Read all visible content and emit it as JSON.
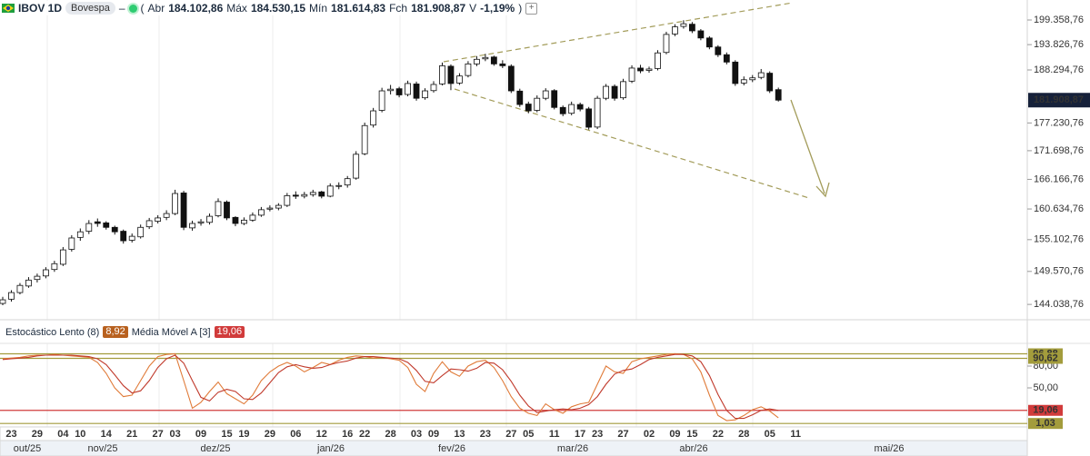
{
  "header": {
    "symbol": "IBOV 1D",
    "exchange": "Bovespa",
    "quote": [
      {
        "label": "Abr",
        "value": "184.102,86"
      },
      {
        "label": "Máx",
        "value": "184.530,15"
      },
      {
        "label": "Mín",
        "value": "181.614,83"
      },
      {
        "label": "Fch",
        "value": "181.908,87"
      },
      {
        "label": "V",
        "value": "-1,19%"
      }
    ]
  },
  "chart_data": [
    {
      "type": "candlestick",
      "log_scale": true,
      "ylim": [
        141830,
        203966
      ],
      "yticks": [
        {
          "value": 144038.76,
          "label": "144.038,76"
        },
        {
          "value": 149570.76,
          "label": "149.570,76"
        },
        {
          "value": 155102.76,
          "label": "155.102,76"
        },
        {
          "value": 160634.76,
          "label": "160.634,76"
        },
        {
          "value": 166166.76,
          "label": "166.166,76"
        },
        {
          "value": 171698.76,
          "label": "171.698,76"
        },
        {
          "value": 177230.76,
          "label": "177.230,76"
        },
        {
          "value": 188294.76,
          "label": "188.294,76"
        },
        {
          "value": 193826.76,
          "label": "193.826,76"
        },
        {
          "value": 199358.76,
          "label": "199.358,76"
        }
      ],
      "last_value_label": "181.908,87",
      "months": [
        "out/25",
        "nov/25",
        "dez/25",
        "jan/26",
        "fev/26",
        "mar/26",
        "abr/26",
        "mai/26"
      ],
      "categories": [
        null,
        "23",
        null,
        null,
        "29",
        null,
        null,
        "04",
        null,
        "10",
        null,
        null,
        "14",
        null,
        null,
        "21",
        null,
        null,
        "27",
        null,
        "03",
        null,
        null,
        "09",
        null,
        null,
        "15",
        null,
        "19",
        null,
        null,
        "29",
        null,
        null,
        "06",
        null,
        null,
        "12",
        null,
        null,
        "16",
        null,
        "22",
        null,
        null,
        "28",
        null,
        null,
        "03",
        null,
        "09",
        null,
        null,
        "13",
        null,
        null,
        "23",
        null,
        null,
        "27",
        null,
        "05",
        null,
        null,
        "11",
        null,
        null,
        "17",
        null,
        "23",
        null,
        null,
        "27",
        null,
        null,
        "02",
        null,
        null,
        "09",
        null,
        "15",
        null,
        null,
        "22",
        null,
        null,
        "28",
        null,
        null,
        "05",
        null,
        null,
        "11",
        null,
        null,
        null,
        null,
        null,
        null,
        null,
        null,
        null,
        null,
        null,
        null,
        null,
        null,
        null,
        null,
        null,
        null,
        null,
        null,
        null,
        null,
        null,
        null,
        null,
        null
      ],
      "candles": [
        [
          144200,
          145300,
          143900,
          144800
        ],
        [
          144900,
          146400,
          144500,
          146000
        ],
        [
          146000,
          147600,
          145700,
          147200
        ],
        [
          147100,
          148600,
          146800,
          148100
        ],
        [
          148200,
          149200,
          147700,
          148750
        ],
        [
          148800,
          150300,
          148400,
          149850
        ],
        [
          149900,
          151400,
          149500,
          150900
        ],
        [
          150800,
          153800,
          150500,
          153300
        ],
        [
          153400,
          155900,
          153000,
          155400
        ],
        [
          155500,
          157100,
          154900,
          156500
        ],
        [
          156600,
          158600,
          156100,
          157990
        ],
        [
          158300,
          158900,
          157400,
          158000
        ],
        [
          158100,
          158400,
          156900,
          157300
        ],
        [
          157300,
          157600,
          156000,
          156500
        ],
        [
          156600,
          156900,
          154400,
          154900
        ],
        [
          155000,
          156200,
          154600,
          155700
        ],
        [
          155600,
          157800,
          155300,
          157300
        ],
        [
          157400,
          159000,
          157000,
          158500
        ],
        [
          158400,
          159500,
          158000,
          159000
        ],
        [
          159100,
          160400,
          158600,
          159800
        ],
        [
          159800,
          164200,
          159500,
          163500
        ],
        [
          163600,
          164000,
          156800,
          157300
        ],
        [
          157200,
          158500,
          156700,
          158000
        ],
        [
          158100,
          158800,
          157600,
          158300
        ],
        [
          158200,
          159800,
          157800,
          159300
        ],
        [
          159400,
          162600,
          159100,
          162000
        ],
        [
          161900,
          162200,
          158600,
          159000
        ],
        [
          159100,
          159300,
          157500,
          158000
        ],
        [
          158000,
          159100,
          157700,
          158600
        ],
        [
          158600,
          160000,
          158300,
          159500
        ],
        [
          159500,
          161000,
          159200,
          160500
        ],
        [
          160600,
          161300,
          160200,
          160800
        ],
        [
          160800,
          161700,
          160400,
          161300
        ],
        [
          161300,
          163600,
          161000,
          163100
        ],
        [
          163200,
          163900,
          162500,
          163000
        ],
        [
          163000,
          163800,
          162600,
          163300
        ],
        [
          163300,
          164200,
          162900,
          163700
        ],
        [
          163800,
          164000,
          162600,
          163000
        ],
        [
          163000,
          165400,
          162800,
          164900
        ],
        [
          164900,
          165600,
          164300,
          165000
        ],
        [
          165100,
          166800,
          164600,
          166300
        ],
        [
          166400,
          171600,
          166100,
          171000
        ],
        [
          171100,
          177300,
          170800,
          176700
        ],
        [
          176800,
          180300,
          176300,
          179700
        ],
        [
          179800,
          184500,
          179400,
          183850
        ],
        [
          183900,
          185100,
          183100,
          184200
        ],
        [
          184300,
          184700,
          182500,
          183000
        ],
        [
          183100,
          186000,
          182700,
          185400
        ],
        [
          185300,
          185800,
          181800,
          182300
        ],
        [
          182400,
          184400,
          182000,
          183850
        ],
        [
          183900,
          185900,
          183500,
          185200
        ],
        [
          185300,
          189900,
          185000,
          189200
        ],
        [
          189100,
          189500,
          184000,
          185400
        ],
        [
          185500,
          187600,
          185100,
          187000
        ],
        [
          187100,
          190200,
          186700,
          189600
        ],
        [
          189600,
          191300,
          189100,
          190600
        ],
        [
          190700,
          191800,
          190200,
          191000
        ],
        [
          191100,
          191400,
          189200,
          189600
        ],
        [
          189600,
          190400,
          188700,
          189200
        ],
        [
          189100,
          189500,
          183400,
          183850
        ],
        [
          183800,
          184300,
          180500,
          181000
        ],
        [
          181100,
          181600,
          179200,
          179700
        ],
        [
          179800,
          182900,
          179400,
          182300
        ],
        [
          182300,
          184400,
          181900,
          183850
        ],
        [
          183900,
          184200,
          180000,
          180400
        ],
        [
          180400,
          180800,
          178600,
          179100
        ],
        [
          179200,
          181600,
          178800,
          181000
        ],
        [
          181000,
          181400,
          179600,
          180060
        ],
        [
          180100,
          180500,
          175900,
          176370
        ],
        [
          176400,
          182800,
          176000,
          182300
        ],
        [
          182300,
          185300,
          181900,
          184800
        ],
        [
          184800,
          185200,
          181800,
          182300
        ],
        [
          182400,
          186400,
          182000,
          185800
        ],
        [
          185900,
          189300,
          185500,
          188700
        ],
        [
          188700,
          189400,
          187600,
          188100
        ],
        [
          188200,
          189000,
          187700,
          188500
        ],
        [
          188600,
          192600,
          188200,
          192000
        ],
        [
          192100,
          196700,
          191700,
          196100
        ],
        [
          196200,
          198400,
          195700,
          197800
        ],
        [
          197900,
          199300,
          197400,
          198500
        ],
        [
          198400,
          198900,
          196400,
          196900
        ],
        [
          196900,
          197300,
          194800,
          195300
        ],
        [
          195300,
          195700,
          192800,
          193300
        ],
        [
          193300,
          193700,
          191100,
          191600
        ],
        [
          191600,
          192100,
          189500,
          190000
        ],
        [
          190000,
          190400,
          184900,
          185400
        ],
        [
          185500,
          186900,
          185000,
          186200
        ],
        [
          186200,
          187200,
          185700,
          186600
        ],
        [
          186700,
          188500,
          186300,
          187700
        ],
        [
          187600,
          188000,
          183400,
          183850
        ],
        [
          184102.86,
          184530.15,
          181614.83,
          181908.87
        ],
        null,
        null,
        null,
        null,
        null,
        null,
        null,
        null,
        null,
        null,
        null,
        null,
        null,
        null,
        null,
        null,
        null,
        null,
        null,
        null,
        null,
        null,
        null,
        null,
        null,
        null,
        null,
        null
      ]
    },
    {
      "type": "line",
      "ylim": [
        -3.75,
        105
      ],
      "yticks": [
        {
          "value": 50,
          "label": "50,00"
        },
        {
          "value": 80,
          "label": "80,00"
        }
      ],
      "markers": [
        {
          "value": 96.88,
          "label": "96,88",
          "color": "#a39c3c"
        },
        {
          "value": 90.62,
          "label": "90,62",
          "color": "#a39c3c"
        },
        {
          "value": 19.06,
          "label": "19,06",
          "color": "#d13b3b"
        },
        {
          "value": 1.03,
          "label": "1,03",
          "color": "#a39c3c"
        }
      ],
      "series": [
        {
          "name": "Estocástico Lento (8)",
          "color": "#e07b39",
          "badge_color": "#b8611f",
          "last_label": "8,92",
          "values": [
            90,
            91,
            92,
            94,
            95,
            95,
            96,
            95,
            94,
            93,
            92,
            85,
            70,
            50,
            38,
            40,
            60,
            80,
            93,
            96,
            97,
            60,
            22,
            30,
            45,
            58,
            42,
            35,
            28,
            40,
            60,
            72,
            80,
            85,
            80,
            72,
            78,
            85,
            82,
            88,
            92,
            94,
            93,
            91,
            92,
            90,
            88,
            78,
            55,
            45,
            70,
            86,
            72,
            66,
            80,
            86,
            88,
            78,
            60,
            38,
            22,
            15,
            12,
            28,
            20,
            15,
            24,
            28,
            30,
            55,
            80,
            72,
            70,
            86,
            90,
            92,
            94,
            96,
            97,
            96,
            90,
            72,
            40,
            12,
            5,
            6,
            12,
            20,
            24,
            18,
            8.92,
            null,
            null,
            null,
            null,
            null,
            null,
            null,
            null,
            null,
            null,
            null,
            null,
            null,
            null,
            null,
            null,
            null,
            null,
            null,
            null,
            null,
            null,
            null,
            null,
            null,
            null,
            null,
            null
          ]
        },
        {
          "name": "Média Móvel A [3]",
          "color": "#c0392b",
          "badge_color": "#d13b3b",
          "last_label": "19,06",
          "values": [
            89,
            90,
            91,
            92,
            94,
            95,
            95,
            95,
            95,
            94,
            93,
            90,
            82,
            68,
            53,
            43,
            46,
            60,
            78,
            90,
            95,
            84,
            60,
            37,
            32,
            44,
            48,
            45,
            35,
            34,
            43,
            57,
            71,
            79,
            82,
            79,
            77,
            78,
            82,
            85,
            87,
            91,
            93,
            93,
            92,
            91,
            90,
            85,
            74,
            59,
            57,
            67,
            76,
            75,
            73,
            77,
            85,
            84,
            75,
            59,
            40,
            25,
            16,
            18,
            20,
            21,
            20,
            22,
            27,
            38,
            55,
            69,
            74,
            76,
            82,
            89,
            92,
            94,
            96,
            96,
            94,
            86,
            67,
            41,
            19,
            8,
            8,
            13,
            19,
            21,
            19.06,
            null,
            null,
            null,
            null,
            null,
            null,
            null,
            null,
            null,
            null,
            null,
            null,
            null,
            null,
            null,
            null,
            null,
            null,
            null,
            null,
            null,
            null,
            null,
            null,
            null,
            null,
            null,
            null
          ]
        }
      ]
    }
  ]
}
